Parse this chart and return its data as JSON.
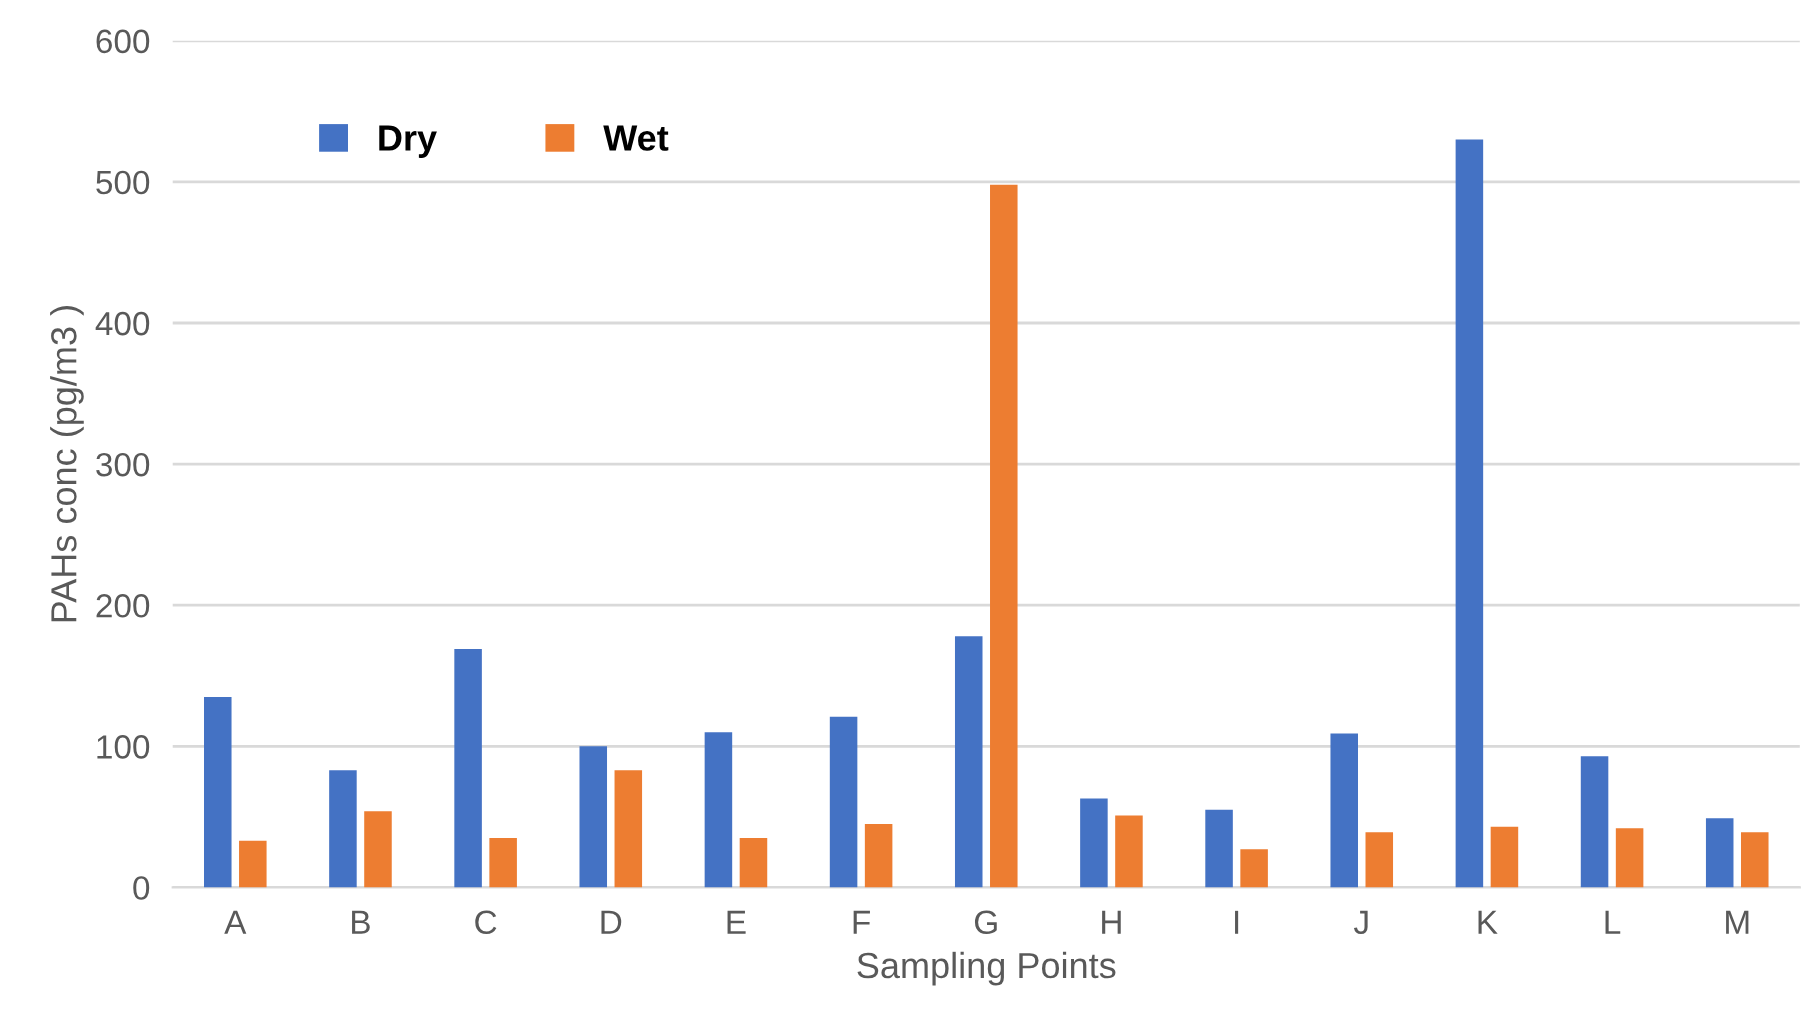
{
  "chart_data": {
    "type": "bar",
    "xlabel": "Sampling Points",
    "ylabel": "PAHs conc (pg/m3 )",
    "categories": [
      "A",
      "B",
      "C",
      "D",
      "E",
      "F",
      "G",
      "H",
      "I",
      "J",
      "K",
      "L",
      "M"
    ],
    "series": [
      {
        "name": "Dry",
        "color": "#4472c4",
        "values": [
          135,
          83,
          169,
          100,
          110,
          121,
          178,
          63,
          55,
          109,
          530,
          93,
          49
        ]
      },
      {
        "name": "Wet",
        "color": "#ed7d31",
        "values": [
          33,
          54,
          35,
          83,
          35,
          45,
          498,
          51,
          27,
          39,
          43,
          42,
          39
        ]
      }
    ],
    "ylim": [
      0,
      600
    ],
    "yticks": [
      0,
      100,
      200,
      300,
      400,
      500,
      600
    ],
    "grid": "y",
    "legend": "top left"
  }
}
